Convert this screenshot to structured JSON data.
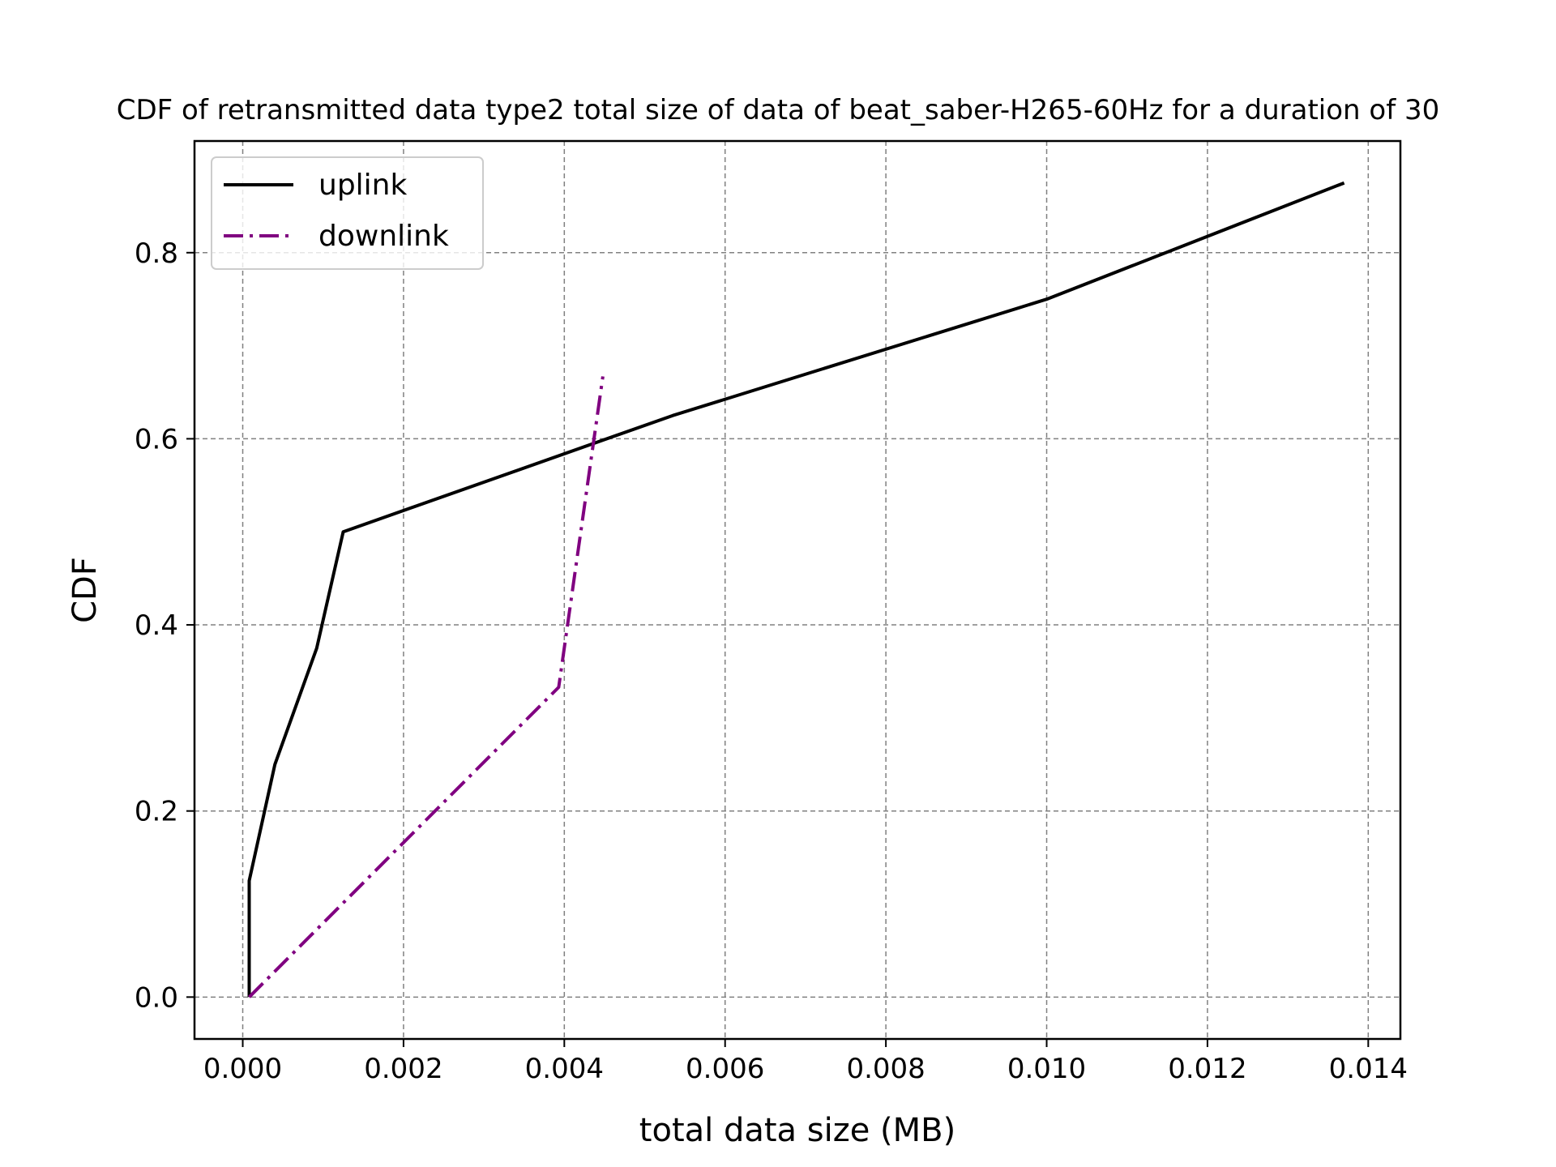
{
  "chart_data": {
    "type": "line",
    "title": "CDF of retransmitted data type2 total size of data of beat_saber-H265-60Hz for a duration of 30",
    "xlabel": "total data size (MB)",
    "ylabel": "CDF",
    "xlim": [
      -0.0006,
      0.0144
    ],
    "ylim": [
      -0.045,
      0.92
    ],
    "x_ticks": [
      0.0,
      0.002,
      0.004,
      0.006,
      0.008,
      0.01,
      0.012,
      0.014
    ],
    "x_tick_labels": [
      "0.000",
      "0.002",
      "0.004",
      "0.006",
      "0.008",
      "0.010",
      "0.012",
      "0.014"
    ],
    "y_ticks": [
      0.0,
      0.2,
      0.4,
      0.6,
      0.8
    ],
    "y_tick_labels": [
      "0.0",
      "0.2",
      "0.4",
      "0.6",
      "0.8"
    ],
    "grid": true,
    "legend_position": "top-left",
    "series": [
      {
        "name": "uplink",
        "color": "#000000",
        "style": "solid",
        "x": [
          8e-05,
          8e-05,
          0.0004,
          0.00092,
          0.00125,
          0.00535,
          0.01,
          0.0137
        ],
        "y": [
          0.0,
          0.125,
          0.25,
          0.375,
          0.5,
          0.625,
          0.75,
          0.875
        ]
      },
      {
        "name": "downlink",
        "color": "#800080",
        "style": "dashdot",
        "x": [
          8e-05,
          0.00393,
          0.00448
        ],
        "y": [
          0.0,
          0.333,
          0.667
        ]
      }
    ]
  }
}
